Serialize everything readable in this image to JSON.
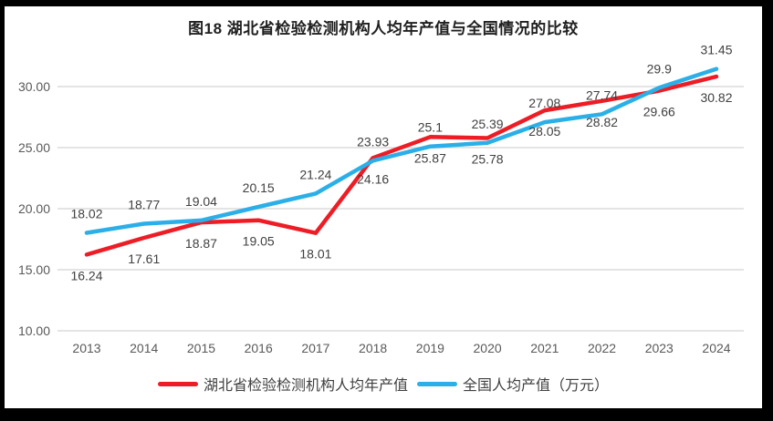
{
  "window": {
    "frame_color": "#000000",
    "chart_background": "#ffffff"
  },
  "chart_data": {
    "type": "line",
    "title": "图18  湖北省检验检测机构人均年产值与全国情况的比较",
    "categories": [
      "2013",
      "2014",
      "2015",
      "2016",
      "2017",
      "2018",
      "2019",
      "2020",
      "2021",
      "2022",
      "2023",
      "2024"
    ],
    "series": [
      {
        "name": "湖北省检验检测机构人均年产值",
        "color": "#ee1c25",
        "values": [
          16.24,
          17.61,
          18.87,
          19.05,
          18.01,
          24.16,
          25.87,
          25.78,
          28.05,
          28.82,
          29.66,
          30.82
        ],
        "labels": [
          "16.24",
          "17.61",
          "18.87",
          "19.05",
          "18.01",
          "24.16",
          "25.87",
          "25.78",
          "28.05",
          "28.82",
          "29.66",
          "30.82"
        ],
        "label_position": "below"
      },
      {
        "name": "全国人均产值（万元）",
        "color": "#2bafe8",
        "values": [
          18.02,
          18.77,
          19.04,
          20.15,
          21.24,
          23.93,
          25.1,
          25.39,
          27.08,
          27.74,
          29.9,
          31.45
        ],
        "labels": [
          "18.02",
          "18.77",
          "19.04",
          "20.15",
          "21.24",
          "23.93",
          "25.1",
          "25.39",
          "27.08",
          "27.74",
          "29.9",
          "31.45"
        ],
        "label_position": "above"
      }
    ],
    "y_axis": {
      "tick_values": [
        10,
        15,
        20,
        25,
        30
      ],
      "tick_labels": [
        "10.00",
        "15.00",
        "20.00",
        "25.00",
        "30.00"
      ]
    },
    "ylim": [
      10,
      33
    ],
    "xlabel": "",
    "ylabel": "",
    "grid": true,
    "legend_position": "bottom",
    "colors": {
      "gridline": "#e0e0e0",
      "axis_text": "#595959",
      "data_label_text": "#404040",
      "title_text": "#1f1f1f"
    }
  }
}
